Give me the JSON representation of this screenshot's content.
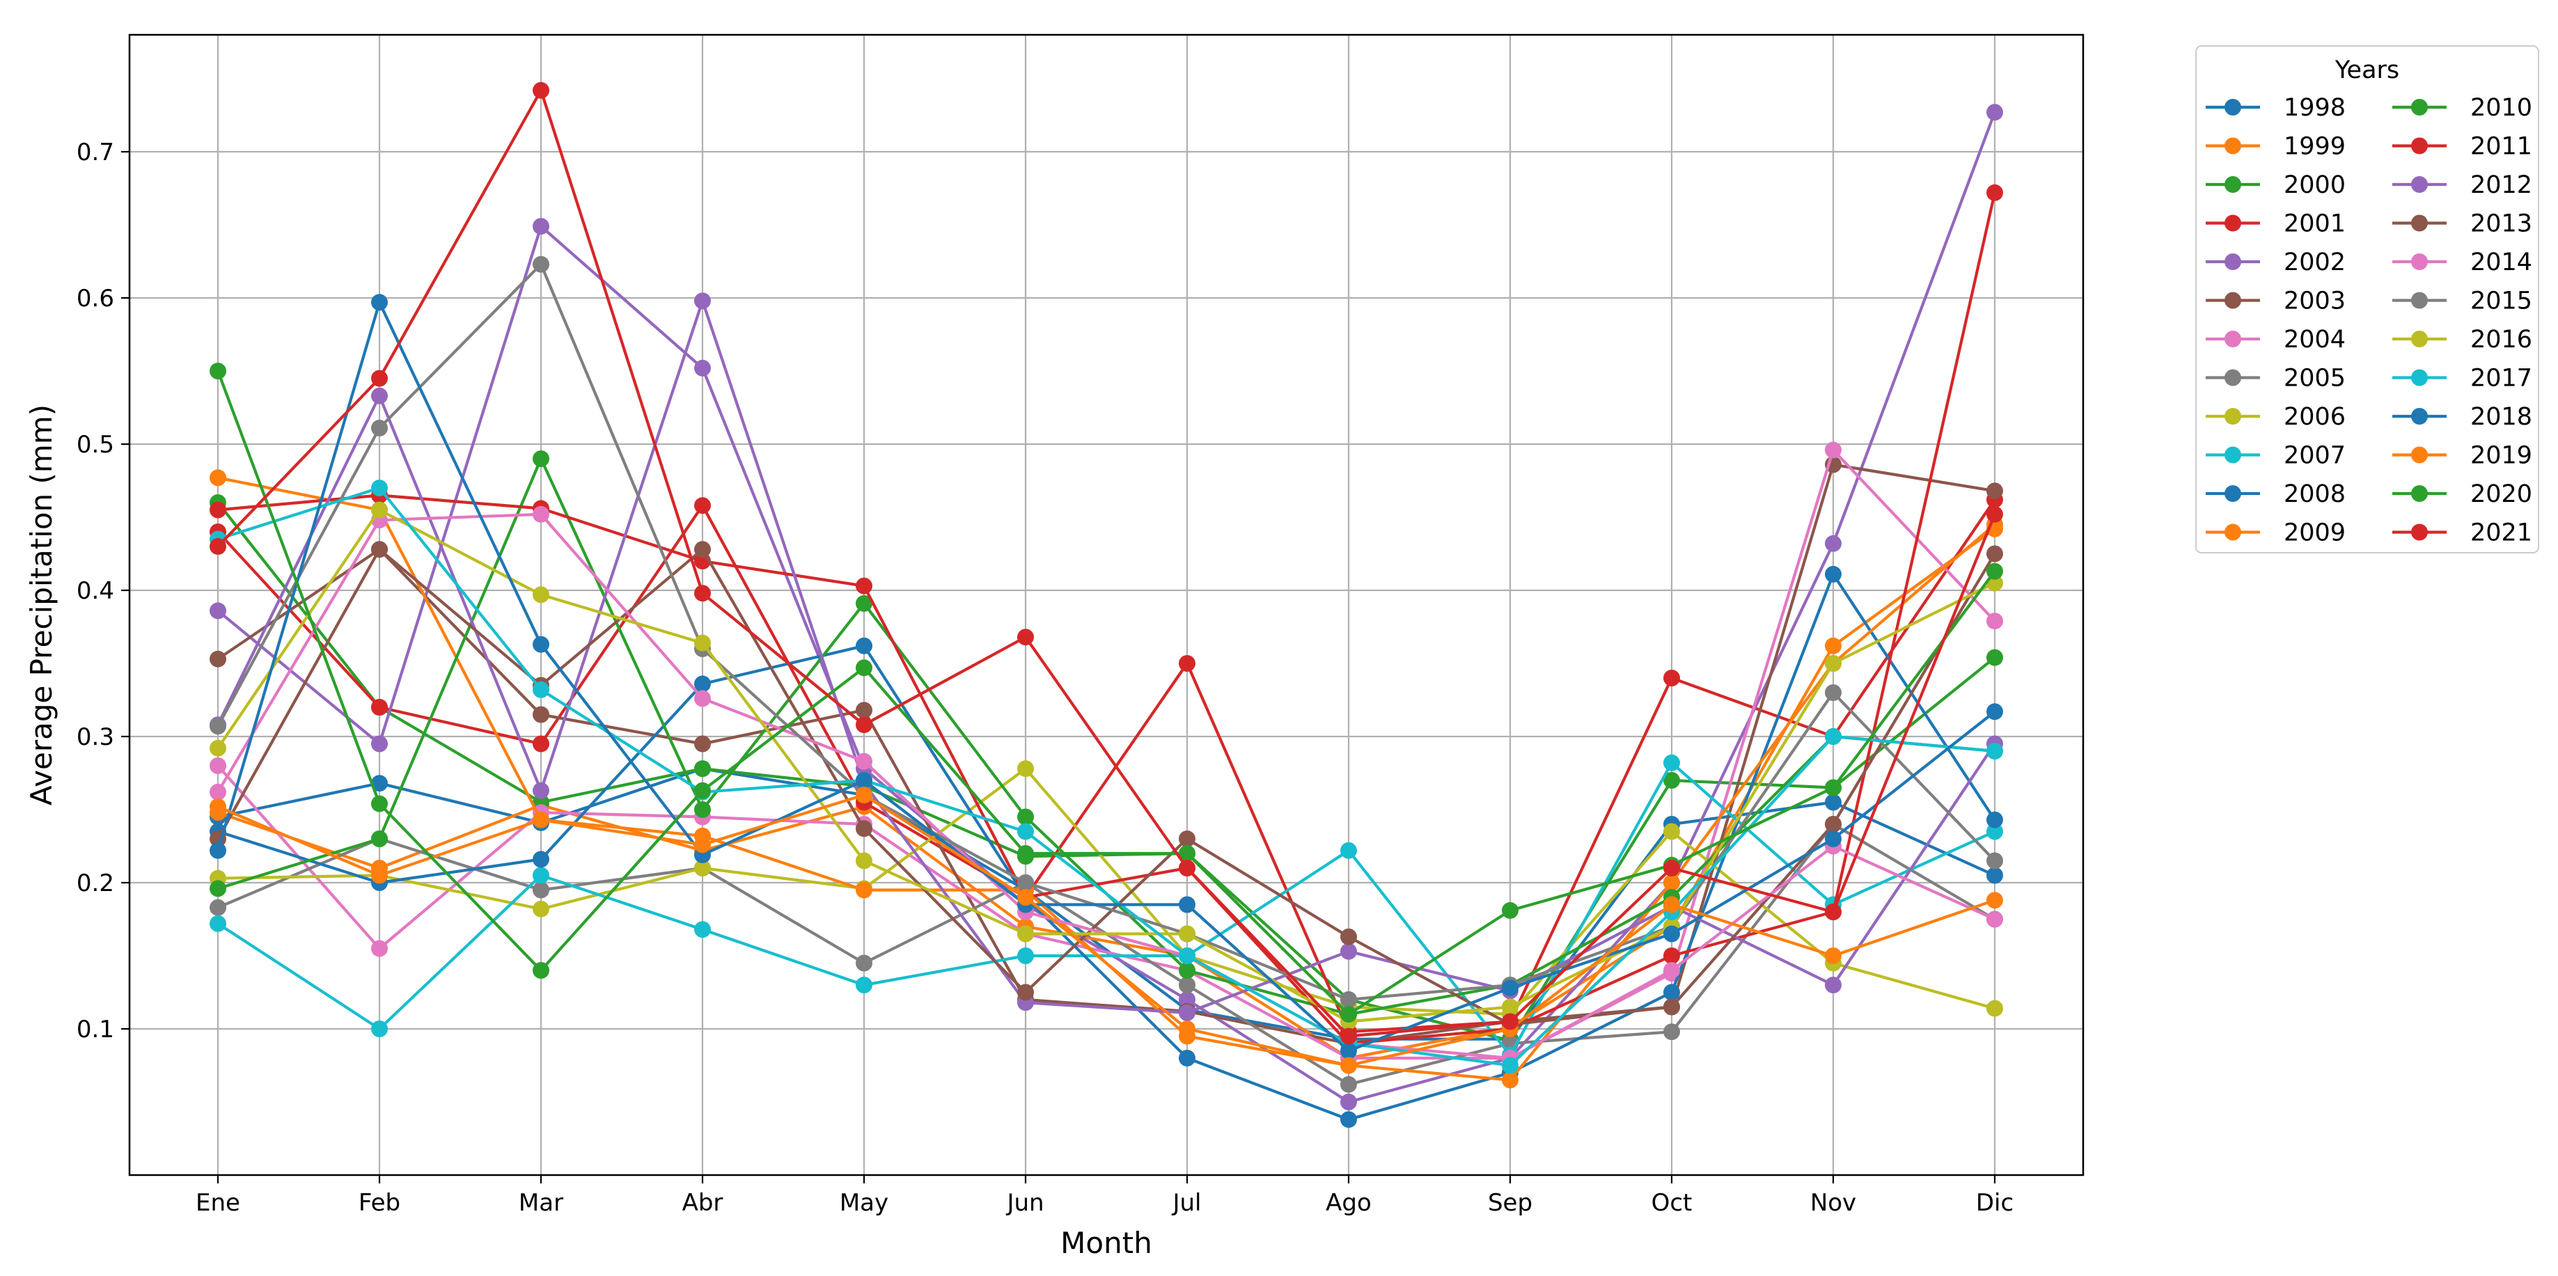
{
  "chart_data": {
    "type": "line",
    "title": "",
    "xlabel": "Month",
    "ylabel": "Average Precipitation (mm)",
    "categories": [
      "Ene",
      "Feb",
      "Mar",
      "Abr",
      "May",
      "Jun",
      "Jul",
      "Ago",
      "Sep",
      "Oct",
      "Nov",
      "Dic"
    ],
    "ylim": [
      0,
      0.78
    ],
    "yticks": [
      "0.1",
      "0.2",
      "0.3",
      "0.4",
      "0.5",
      "0.6",
      "0.7"
    ],
    "ytick_values": [
      0.1,
      0.2,
      0.3,
      0.4,
      0.5,
      0.6,
      0.7
    ],
    "grid": true,
    "legend": {
      "title": "Years",
      "position": "outside-right-top",
      "columns": 2
    },
    "series": [
      {
        "name": "1998",
        "color": "#1f77b4",
        "values": [
          0.245,
          0.268,
          0.241,
          0.278,
          0.26,
          0.195,
          0.113,
          0.093,
          0.093,
          0.24,
          0.255,
          0.205
        ]
      },
      {
        "name": "1999",
        "color": "#ff7f0e",
        "values": [
          0.248,
          0.21,
          0.253,
          0.222,
          0.252,
          0.17,
          0.15,
          0.08,
          0.101,
          0.17,
          0.362,
          0.442
        ]
      },
      {
        "name": "2000",
        "color": "#2ca02c",
        "values": [
          0.46,
          0.32,
          0.255,
          0.278,
          0.266,
          0.218,
          0.22,
          0.12,
          0.092,
          0.27,
          0.265,
          0.354
        ]
      },
      {
        "name": "2001",
        "color": "#d62728",
        "values": [
          0.44,
          0.32,
          0.295,
          0.458,
          0.255,
          0.19,
          0.35,
          0.098,
          0.105,
          0.34,
          0.3,
          0.462
        ]
      },
      {
        "name": "2002",
        "color": "#9467bd",
        "values": [
          0.386,
          0.295,
          0.649,
          0.552,
          0.278,
          0.185,
          0.12,
          0.05,
          0.08,
          0.2,
          0.432,
          0.727
        ]
      },
      {
        "name": "2003",
        "color": "#8c564b",
        "values": [
          0.353,
          0.428,
          0.315,
          0.295,
          0.318,
          0.12,
          0.112,
          0.09,
          0.105,
          0.115,
          0.486,
          0.468
        ]
      },
      {
        "name": "2004",
        "color": "#e377c2",
        "values": [
          0.28,
          0.155,
          0.248,
          0.245,
          0.24,
          0.165,
          0.14,
          0.08,
          0.08,
          0.138,
          0.496,
          0.379
        ]
      },
      {
        "name": "2005",
        "color": "#7f7f7f",
        "values": [
          0.183,
          0.23,
          0.195,
          0.21,
          0.145,
          0.2,
          0.13,
          0.062,
          0.09,
          0.098,
          0.24,
          0.175
        ]
      },
      {
        "name": "2006",
        "color": "#bcbd22",
        "values": [
          0.203,
          0.205,
          0.182,
          0.21,
          0.196,
          0.278,
          0.15,
          0.115,
          0.11,
          0.235,
          0.145,
          0.114
        ]
      },
      {
        "name": "2007",
        "color": "#17becf",
        "values": [
          0.172,
          0.1,
          0.205,
          0.168,
          0.13,
          0.15,
          0.15,
          0.222,
          0.082,
          0.282,
          0.185,
          0.235
        ]
      },
      {
        "name": "2008",
        "color": "#1f77b4",
        "values": [
          0.235,
          0.2,
          0.216,
          0.336,
          0.362,
          0.19,
          0.08,
          0.038,
          0.07,
          0.125,
          0.411,
          0.243
        ]
      },
      {
        "name": "2009",
        "color": "#ff7f0e",
        "values": [
          0.477,
          0.455,
          0.243,
          0.232,
          0.195,
          0.195,
          0.095,
          0.075,
          0.065,
          0.2,
          0.35,
          0.445
        ]
      },
      {
        "name": "2010",
        "color": "#2ca02c",
        "values": [
          0.196,
          0.23,
          0.49,
          0.25,
          0.391,
          0.245,
          0.14,
          0.11,
          0.13,
          0.19,
          0.3,
          0.29
        ]
      },
      {
        "name": "2011",
        "color": "#d62728",
        "values": [
          0.455,
          0.465,
          0.456,
          0.42,
          0.403,
          0.19,
          0.21,
          0.09,
          0.1,
          0.15,
          0.18,
          0.672
        ]
      },
      {
        "name": "2012",
        "color": "#9467bd",
        "values": [
          0.308,
          0.533,
          0.263,
          0.598,
          0.268,
          0.118,
          0.111,
          0.153,
          0.126,
          0.184,
          0.13,
          0.295
        ]
      },
      {
        "name": "2013",
        "color": "#8c564b",
        "values": [
          0.23,
          0.428,
          0.335,
          0.428,
          0.237,
          0.125,
          0.23,
          0.163,
          0.103,
          0.115,
          0.24,
          0.425
        ]
      },
      {
        "name": "2014",
        "color": "#e377c2",
        "values": [
          0.262,
          0.448,
          0.452,
          0.326,
          0.283,
          0.18,
          0.15,
          0.09,
          0.08,
          0.14,
          0.225,
          0.175
        ]
      },
      {
        "name": "2015",
        "color": "#7f7f7f",
        "values": [
          0.307,
          0.511,
          0.623,
          0.36,
          0.26,
          0.2,
          0.165,
          0.12,
          0.13,
          0.17,
          0.33,
          0.215
        ]
      },
      {
        "name": "2016",
        "color": "#bcbd22",
        "values": [
          0.292,
          0.455,
          0.397,
          0.364,
          0.215,
          0.165,
          0.165,
          0.105,
          0.115,
          0.17,
          0.35,
          0.405
        ]
      },
      {
        "name": "2017",
        "color": "#17becf",
        "values": [
          0.435,
          0.47,
          0.332,
          0.262,
          0.27,
          0.235,
          0.15,
          0.09,
          0.075,
          0.18,
          0.3,
          0.29
        ]
      },
      {
        "name": "2018",
        "color": "#1f77b4",
        "values": [
          0.222,
          0.597,
          0.363,
          0.219,
          0.27,
          0.185,
          0.185,
          0.085,
          0.128,
          0.165,
          0.23,
          0.317
        ]
      },
      {
        "name": "2019",
        "color": "#ff7f0e",
        "values": [
          0.252,
          0.205,
          0.243,
          0.226,
          0.26,
          0.19,
          0.1,
          0.075,
          0.1,
          0.185,
          0.15,
          0.188
        ]
      },
      {
        "name": "2020",
        "color": "#2ca02c",
        "values": [
          0.55,
          0.254,
          0.14,
          0.263,
          0.347,
          0.22,
          0.22,
          0.11,
          0.181,
          0.212,
          0.265,
          0.413
        ]
      },
      {
        "name": "2021",
        "color": "#d62728",
        "values": [
          0.43,
          0.545,
          0.742,
          0.398,
          0.308,
          0.368,
          0.21,
          0.095,
          0.105,
          0.21,
          0.18,
          0.452
        ]
      }
    ]
  }
}
